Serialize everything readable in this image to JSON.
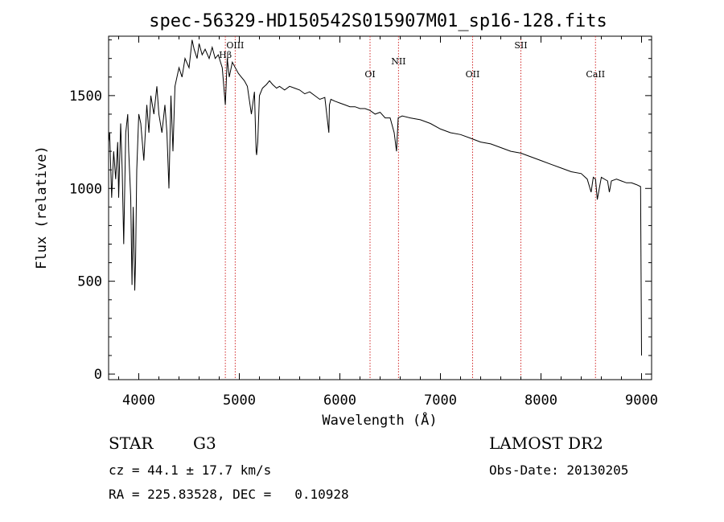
{
  "chart_data": {
    "type": "line",
    "title": "spec-56329-HD150542S015907M01_sp16-128.fits",
    "xlabel": "Wavelength (Å)",
    "ylabel": "Flux (relative)",
    "xlim": [
      3700,
      9100
    ],
    "ylim": [
      -30,
      1820
    ],
    "xticks": [
      4000,
      5000,
      6000,
      7000,
      8000,
      9000
    ],
    "yticks": [
      0,
      500,
      1000,
      1500
    ],
    "series": [
      {
        "name": "flux",
        "x": [
          3700,
          3710,
          3730,
          3750,
          3770,
          3790,
          3800,
          3820,
          3835,
          3850,
          3870,
          3890,
          3900,
          3920,
          3933,
          3945,
          3960,
          3968,
          3980,
          4000,
          4020,
          4050,
          4080,
          4101,
          4120,
          4150,
          4180,
          4200,
          4230,
          4260,
          4280,
          4300,
          4320,
          4340,
          4360,
          4400,
          4430,
          4460,
          4500,
          4530,
          4550,
          4580,
          4600,
          4630,
          4660,
          4700,
          4730,
          4760,
          4790,
          4830,
          4861,
          4880,
          4900,
          4930,
          4960,
          4990,
          5020,
          5050,
          5080,
          5120,
          5150,
          5167,
          5172,
          5183,
          5200,
          5230,
          5270,
          5300,
          5330,
          5370,
          5400,
          5450,
          5500,
          5550,
          5600,
          5650,
          5700,
          5750,
          5800,
          5850,
          5890,
          5896,
          5910,
          5950,
          6000,
          6050,
          6100,
          6150,
          6200,
          6250,
          6300,
          6350,
          6400,
          6450,
          6500,
          6540,
          6563,
          6580,
          6620,
          6700,
          6800,
          6900,
          7000,
          7100,
          7200,
          7300,
          7400,
          7500,
          7600,
          7700,
          7800,
          7900,
          8000,
          8100,
          8200,
          8300,
          8400,
          8460,
          8498,
          8520,
          8542,
          8560,
          8600,
          8662,
          8680,
          8700,
          8750,
          8800,
          8850,
          8900,
          8950,
          8990,
          9000
        ],
        "y": [
          1250,
          1300,
          950,
          1200,
          1050,
          1250,
          950,
          1350,
          1100,
          700,
          1300,
          1400,
          1200,
          950,
          480,
          900,
          450,
          600,
          1100,
          1400,
          1350,
          1150,
          1450,
          1300,
          1500,
          1400,
          1550,
          1400,
          1300,
          1450,
          1300,
          1000,
          1500,
          1200,
          1550,
          1650,
          1600,
          1700,
          1650,
          1800,
          1750,
          1700,
          1780,
          1720,
          1750,
          1700,
          1760,
          1700,
          1720,
          1650,
          1450,
          1700,
          1600,
          1680,
          1650,
          1620,
          1600,
          1580,
          1550,
          1400,
          1520,
          1200,
          1180,
          1250,
          1500,
          1540,
          1560,
          1580,
          1560,
          1540,
          1550,
          1530,
          1550,
          1540,
          1530,
          1510,
          1520,
          1500,
          1480,
          1490,
          1300,
          1450,
          1480,
          1470,
          1460,
          1450,
          1440,
          1440,
          1430,
          1430,
          1420,
          1400,
          1410,
          1380,
          1380,
          1300,
          1200,
          1380,
          1390,
          1380,
          1370,
          1350,
          1320,
          1300,
          1290,
          1270,
          1250,
          1240,
          1220,
          1200,
          1190,
          1170,
          1150,
          1130,
          1110,
          1090,
          1080,
          1050,
          980,
          1060,
          1050,
          940,
          1060,
          1040,
          980,
          1040,
          1050,
          1040,
          1030,
          1030,
          1020,
          1010,
          100
        ]
      }
    ],
    "spectral_lines": [
      {
        "name": "OIII",
        "wavelength": 4959
      },
      {
        "name": "Hβ",
        "wavelength": 4861
      },
      {
        "name": "OI",
        "wavelength": 6300
      },
      {
        "name": "NII",
        "wavelength": 6583
      },
      {
        "name": "OII",
        "wavelength": 7320
      },
      {
        "name": "SII",
        "wavelength": 7800
      },
      {
        "name": "CaII",
        "wavelength": 8542
      }
    ],
    "line_color": "#d22a2a"
  },
  "info": {
    "class": "STAR",
    "subclass": "G3",
    "survey": "LAMOST DR2",
    "cz": "cz = 44.1 ± 17.7 km/s",
    "obs_date": "Obs-Date: 20130205",
    "coords": "RA = 225.83528, DEC =   0.10928"
  }
}
